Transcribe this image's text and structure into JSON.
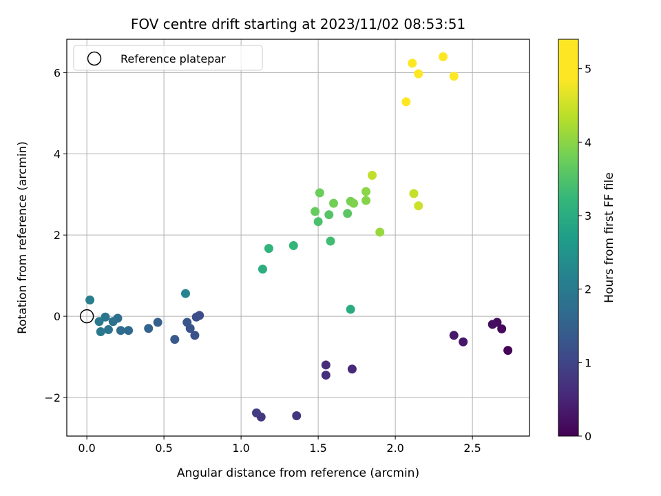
{
  "chart_data": {
    "type": "scatter",
    "title": "FOV centre drift starting at 2023/11/02 08:53:51",
    "xlabel": "Angular distance from reference (arcmin)",
    "ylabel": "Rotation from reference (arcmin)",
    "xlim": [
      -0.13,
      2.87
    ],
    "ylim": [
      -2.95,
      6.82
    ],
    "xticks": [
      0.0,
      0.5,
      1.0,
      1.5,
      2.0,
      2.5
    ],
    "xtick_labels": [
      "0.0",
      "0.5",
      "1.0",
      "1.5",
      "2.0",
      "2.5"
    ],
    "yticks": [
      -2,
      0,
      2,
      4,
      6
    ],
    "ytick_labels": [
      "−2",
      "0",
      "2",
      "4",
      "6"
    ],
    "grid": true,
    "legend": {
      "placement": "top-left",
      "label": "Reference platepar"
    },
    "reference_point": {
      "x": 0.0,
      "y": 0.0
    },
    "colorbar": {
      "label": "Hours from first FF file",
      "colormap": "viridis",
      "range": [
        0,
        5.4
      ],
      "ticks": [
        0,
        1,
        2,
        3,
        4,
        5
      ],
      "tick_labels": [
        "0",
        "1",
        "2",
        "3",
        "4",
        "5"
      ]
    },
    "points": [
      {
        "x": 2.73,
        "y": -0.84,
        "c": 0.05
      },
      {
        "x": 2.69,
        "y": -0.31,
        "c": 0.1
      },
      {
        "x": 2.66,
        "y": -0.15,
        "c": 0.15
      },
      {
        "x": 2.63,
        "y": -0.2,
        "c": 0.2
      },
      {
        "x": 2.44,
        "y": -0.63,
        "c": 0.3
      },
      {
        "x": 2.38,
        "y": -0.47,
        "c": 0.35
      },
      {
        "x": 1.72,
        "y": -1.3,
        "c": 0.55
      },
      {
        "x": 1.55,
        "y": -1.2,
        "c": 0.6
      },
      {
        "x": 1.55,
        "y": -1.45,
        "c": 0.65
      },
      {
        "x": 1.36,
        "y": -2.45,
        "c": 0.75
      },
      {
        "x": 1.13,
        "y": -2.48,
        "c": 0.8
      },
      {
        "x": 1.1,
        "y": -2.38,
        "c": 0.85
      },
      {
        "x": 0.73,
        "y": 0.02,
        "c": 1.1
      },
      {
        "x": 0.71,
        "y": -0.02,
        "c": 1.15
      },
      {
        "x": 0.7,
        "y": -0.47,
        "c": 1.2
      },
      {
        "x": 0.67,
        "y": -0.3,
        "c": 1.25
      },
      {
        "x": 0.65,
        "y": -0.15,
        "c": 1.3
      },
      {
        "x": 0.57,
        "y": -0.57,
        "c": 1.35
      },
      {
        "x": 0.46,
        "y": -0.15,
        "c": 1.45
      },
      {
        "x": 0.4,
        "y": -0.3,
        "c": 1.55
      },
      {
        "x": 0.27,
        "y": -0.35,
        "c": 1.65
      },
      {
        "x": 0.22,
        "y": -0.35,
        "c": 1.7
      },
      {
        "x": 0.2,
        "y": -0.05,
        "c": 1.75
      },
      {
        "x": 0.17,
        "y": -0.13,
        "c": 1.8
      },
      {
        "x": 0.14,
        "y": -0.33,
        "c": 1.85
      },
      {
        "x": 0.12,
        "y": -0.02,
        "c": 1.9
      },
      {
        "x": 0.09,
        "y": -0.38,
        "c": 1.95
      },
      {
        "x": 0.08,
        "y": -0.13,
        "c": 2.0
      },
      {
        "x": 0.02,
        "y": 0.4,
        "c": 2.1
      },
      {
        "x": 0.64,
        "y": 0.56,
        "c": 2.2
      },
      {
        "x": 1.71,
        "y": 0.17,
        "c": 3.0
      },
      {
        "x": 1.14,
        "y": 1.16,
        "c": 3.05
      },
      {
        "x": 1.18,
        "y": 1.67,
        "c": 3.15
      },
      {
        "x": 1.34,
        "y": 1.74,
        "c": 3.2
      },
      {
        "x": 1.58,
        "y": 1.85,
        "c": 3.35
      },
      {
        "x": 1.5,
        "y": 2.33,
        "c": 3.45
      },
      {
        "x": 1.57,
        "y": 2.5,
        "c": 3.55
      },
      {
        "x": 1.69,
        "y": 2.53,
        "c": 3.6
      },
      {
        "x": 1.48,
        "y": 2.58,
        "c": 3.7
      },
      {
        "x": 1.51,
        "y": 3.04,
        "c": 3.75
      },
      {
        "x": 1.6,
        "y": 2.78,
        "c": 3.8
      },
      {
        "x": 1.71,
        "y": 2.83,
        "c": 3.85
      },
      {
        "x": 1.73,
        "y": 2.78,
        "c": 3.9
      },
      {
        "x": 1.81,
        "y": 2.85,
        "c": 3.95
      },
      {
        "x": 1.81,
        "y": 3.07,
        "c": 4.0
      },
      {
        "x": 1.9,
        "y": 2.07,
        "c": 4.1
      },
      {
        "x": 1.85,
        "y": 3.47,
        "c": 4.4
      },
      {
        "x": 2.12,
        "y": 3.02,
        "c": 4.45
      },
      {
        "x": 2.15,
        "y": 2.72,
        "c": 4.5
      },
      {
        "x": 2.07,
        "y": 5.28,
        "c": 5.2
      },
      {
        "x": 2.11,
        "y": 6.23,
        "c": 5.3
      },
      {
        "x": 2.15,
        "y": 5.97,
        "c": 5.3
      },
      {
        "x": 2.31,
        "y": 6.39,
        "c": 5.35
      },
      {
        "x": 2.38,
        "y": 5.91,
        "c": 5.4
      }
    ]
  }
}
